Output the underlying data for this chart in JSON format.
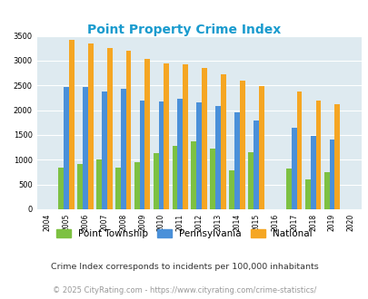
{
  "title": "Point Property Crime Index",
  "title_color": "#1a9bce",
  "years": [
    2004,
    2005,
    2006,
    2007,
    2008,
    2009,
    2010,
    2011,
    2012,
    2013,
    2014,
    2015,
    2016,
    2017,
    2018,
    2019,
    2020
  ],
  "point_township": [
    0,
    850,
    920,
    1000,
    850,
    950,
    1130,
    1280,
    1370,
    1230,
    780,
    1150,
    0,
    830,
    610,
    750,
    0
  ],
  "pennsylvania": [
    0,
    2460,
    2470,
    2370,
    2440,
    2200,
    2180,
    2240,
    2160,
    2080,
    1950,
    1800,
    0,
    1640,
    1490,
    1400,
    0
  ],
  "national": [
    0,
    3420,
    3340,
    3250,
    3200,
    3040,
    2950,
    2920,
    2860,
    2720,
    2590,
    2490,
    0,
    2380,
    2200,
    2120,
    0
  ],
  "point_color": "#7dc142",
  "pa_color": "#4a90d9",
  "national_color": "#f5a623",
  "plot_bg": "#deeaf0",
  "ylim": [
    0,
    3500
  ],
  "yticks": [
    0,
    500,
    1000,
    1500,
    2000,
    2500,
    3000,
    3500
  ],
  "legend_labels": [
    "Point Township",
    "Pennsylvania",
    "National"
  ],
  "footnote1": "Crime Index corresponds to incidents per 100,000 inhabitants",
  "footnote2": "© 2025 CityRating.com - https://www.cityrating.com/crime-statistics/",
  "footnote1_color": "#333333",
  "footnote2_color": "#999999"
}
